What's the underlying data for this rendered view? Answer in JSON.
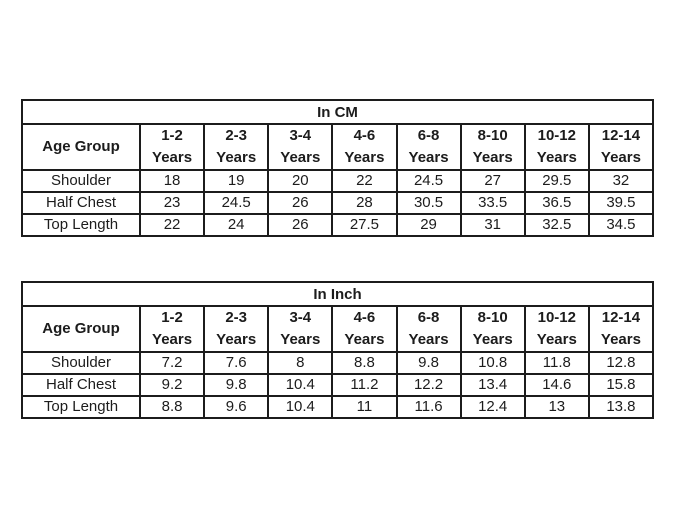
{
  "page": {
    "background_color": "#ffffff",
    "border_color": "#1c1c1c",
    "text_color": "#1c1c1c"
  },
  "tables": [
    {
      "title": "In CM",
      "corner_label": "Age Group",
      "columns": [
        "1-2\nYears",
        "2-3\nYears",
        "3-4\nYears",
        "4-6\nYears",
        "6-8\nYears",
        "8-10\nYears",
        "10-12\nYears",
        "12-14\nYears"
      ],
      "rows": [
        {
          "label": "Shoulder",
          "values": [
            "18",
            "19",
            "20",
            "22",
            "24.5",
            "27",
            "29.5",
            "32"
          ]
        },
        {
          "label": "Half Chest",
          "values": [
            "23",
            "24.5",
            "26",
            "28",
            "30.5",
            "33.5",
            "36.5",
            "39.5"
          ]
        },
        {
          "label": "Top Length",
          "values": [
            "22",
            "24",
            "26",
            "27.5",
            "29",
            "31",
            "32.5",
            "34.5"
          ]
        }
      ]
    },
    {
      "title": "In Inch",
      "corner_label": "Age Group",
      "columns": [
        "1-2\nYears",
        "2-3\nYears",
        "3-4\nYears",
        "4-6\nYears",
        "6-8\nYears",
        "8-10\nYears",
        "10-12\nYears",
        "12-14\nYears"
      ],
      "rows": [
        {
          "label": "Shoulder",
          "values": [
            "7.2",
            "7.6",
            "8",
            "8.8",
            "9.8",
            "10.8",
            "11.8",
            "12.8"
          ]
        },
        {
          "label": "Half Chest",
          "values": [
            "9.2",
            "9.8",
            "10.4",
            "11.2",
            "12.2",
            "13.4",
            "14.6",
            "15.8"
          ]
        },
        {
          "label": "Top Length",
          "values": [
            "8.8",
            "9.6",
            "10.4",
            "11",
            "11.6",
            "12.4",
            "13",
            "13.8"
          ]
        }
      ]
    }
  ]
}
